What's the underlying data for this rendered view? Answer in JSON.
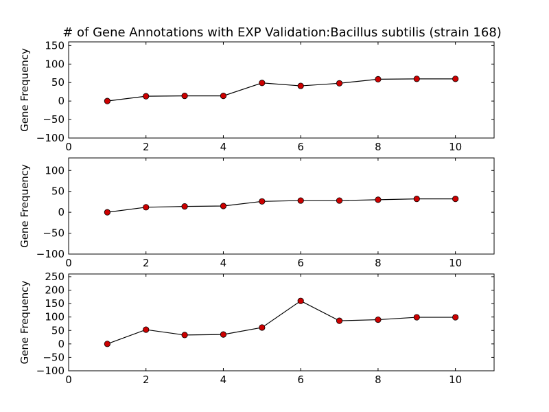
{
  "chart_data": [
    {
      "type": "line",
      "title": "# of Gene Annotations with EXP Validation:Bacillus subtilis (strain 168)",
      "ylabel": "Gene Frequency",
      "xlabel": "",
      "xlim": [
        0,
        11
      ],
      "ylim": [
        -100,
        160
      ],
      "xticks": [
        0,
        2,
        4,
        6,
        8,
        10
      ],
      "yticks": [
        -100,
        -50,
        0,
        50,
        100,
        150
      ],
      "grid": false,
      "line_color": "#000000",
      "marker_color": "#cc0000",
      "x": [
        1,
        2,
        3,
        4,
        5,
        6,
        7,
        8,
        9,
        10
      ],
      "series": [
        {
          "values": [
            0,
            13,
            14,
            14,
            49,
            41,
            48,
            59,
            60,
            60
          ]
        }
      ]
    },
    {
      "type": "line",
      "title": "",
      "ylabel": "Gene Frequency",
      "xlabel": "",
      "xlim": [
        0,
        11
      ],
      "ylim": [
        -100,
        130
      ],
      "xticks": [
        0,
        2,
        4,
        6,
        8,
        10
      ],
      "yticks": [
        -100,
        -50,
        0,
        50,
        100
      ],
      "grid": false,
      "line_color": "#000000",
      "marker_color": "#cc0000",
      "x": [
        1,
        2,
        3,
        4,
        5,
        6,
        7,
        8,
        9,
        10
      ],
      "series": [
        {
          "values": [
            0,
            12,
            14,
            15,
            26,
            28,
            28,
            30,
            32,
            32
          ]
        }
      ]
    },
    {
      "type": "line",
      "title": "",
      "ylabel": "Gene Frequency",
      "xlabel": "",
      "xlim": [
        0,
        11
      ],
      "ylim": [
        -100,
        260
      ],
      "xticks": [
        0,
        2,
        4,
        6,
        8,
        10
      ],
      "yticks": [
        -100,
        -50,
        0,
        50,
        100,
        150,
        200,
        250
      ],
      "grid": false,
      "line_color": "#000000",
      "marker_color": "#cc0000",
      "x": [
        1,
        2,
        3,
        4,
        5,
        6,
        7,
        8,
        9,
        10
      ],
      "series": [
        {
          "values": [
            0,
            53,
            33,
            35,
            61,
            160,
            86,
            90,
            99,
            99
          ]
        }
      ]
    }
  ]
}
